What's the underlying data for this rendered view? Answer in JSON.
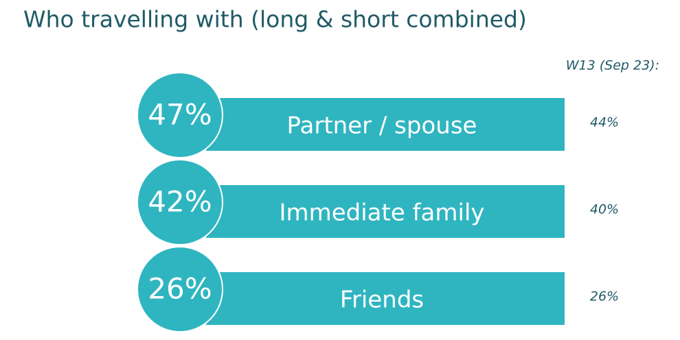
{
  "title": "Who travelling with (long & short combined)",
  "comparison_label": "W13 (Sep 23):",
  "items": [
    {
      "share": "47%",
      "label": "Partner / spouse",
      "previous": "44%"
    },
    {
      "share": "42%",
      "label": "Immediate family",
      "previous": "40%"
    },
    {
      "share": "26%",
      "label": "Friends",
      "previous": "26%"
    }
  ]
}
